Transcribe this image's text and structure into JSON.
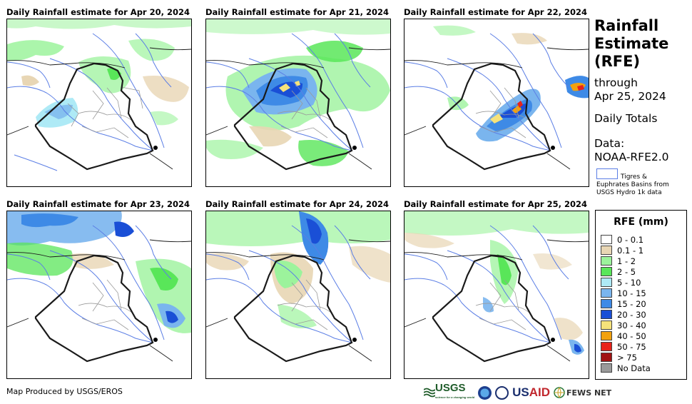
{
  "panels": [
    {
      "title": "Daily Rainfall estimate for Apr 20, 2024"
    },
    {
      "title": "Daily Rainfall estimate for Apr 21, 2024"
    },
    {
      "title": "Daily Rainfall estimate for Apr 22, 2024"
    },
    {
      "title": "Daily Rainfall estimate for Apr 23, 2024"
    },
    {
      "title": "Daily Rainfall estimate for Apr 24, 2024"
    },
    {
      "title": "Daily Rainfall estimate for Apr 25, 2024"
    }
  ],
  "sidebar": {
    "title_line1": "Rainfall",
    "title_line2": "Estimate",
    "title_line3": "(RFE)",
    "through": "through",
    "date": "Apr 25, 2024",
    "totals": "Daily Totals",
    "data_label": "Data:",
    "data_source": "NOAA-RFE2.0",
    "basin_label_1": "Tigres &",
    "basin_label_2": "Euphrates Basins from",
    "basin_label_3": "USGS Hydro 1k data"
  },
  "legend": {
    "title": "RFE (mm)",
    "items": [
      {
        "label": "0 - 0.1",
        "color": "#ffffff"
      },
      {
        "label": "0.1 - 1",
        "color": "#e8d6b4"
      },
      {
        "label": "1 - 2",
        "color": "#9cf39c"
      },
      {
        "label": "2 - 5",
        "color": "#59e659"
      },
      {
        "label": "5 - 10",
        "color": "#aeeaf6"
      },
      {
        "label": "10 - 15",
        "color": "#7ab5ee"
      },
      {
        "label": "15 - 20",
        "color": "#3e8ae6"
      },
      {
        "label": "20 - 30",
        "color": "#1a4fd6"
      },
      {
        "label": "30 - 40",
        "color": "#f6e27a"
      },
      {
        "label": "40 - 50",
        "color": "#f2a10e"
      },
      {
        "label": "50 - 75",
        "color": "#e8231a"
      },
      {
        "label": "> 75",
        "color": "#a11313"
      },
      {
        "label": "No Data",
        "color": "#9a9a9a"
      }
    ]
  },
  "footer": {
    "credit": "Map Produced by USGS/EROS",
    "logo_usgs": "USGS",
    "logo_usgs_tagline": "science for a changing world",
    "logo_usaid_a": "US",
    "logo_usaid_b": "AID",
    "logo_fews": "FEWS NET"
  },
  "colors": {
    "basin": "#5b7ee5",
    "border": "#1a1a1a",
    "admin": "#9a9a9a"
  }
}
